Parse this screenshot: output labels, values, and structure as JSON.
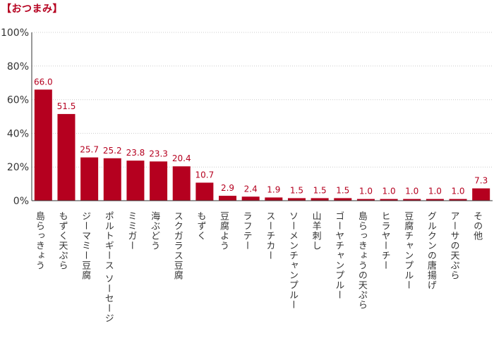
{
  "chart_data": {
    "type": "bar",
    "title": "【おつまみ】",
    "xlabel": "",
    "ylabel": "",
    "ylim": [
      0,
      100
    ],
    "yticks": [
      0,
      20,
      40,
      60,
      80,
      100
    ],
    "ytick_labels": [
      "0%",
      "20%",
      "40%",
      "60%",
      "80%",
      "100%"
    ],
    "grid": true,
    "bar_color": "#b5001f",
    "label_color": "#b5001f",
    "categories": [
      "島らっきょう",
      "もずく天ぷら",
      "ジーマミー豆腐",
      "ポルトギース ソーセージ",
      "ミミガー",
      "海ぶどう",
      "スクガラス豆腐",
      "もずく",
      "豆腐よう",
      "ラフテー",
      "スーチカー",
      "ソーメンチャンプルー",
      "山羊刺し",
      "ゴーヤチャンプルー",
      "島らっきょうの天ぷら",
      "ヒラヤーチー",
      "豆腐チャンプルー",
      "グルクンの唐揚げ",
      "アーサの天ぷら",
      "その他"
    ],
    "values": [
      66.0,
      51.5,
      25.7,
      25.2,
      23.8,
      23.3,
      20.4,
      10.7,
      2.9,
      2.4,
      1.9,
      1.5,
      1.5,
      1.5,
      1.0,
      1.0,
      1.0,
      1.0,
      1.0,
      7.3
    ],
    "value_labels": [
      "66.0",
      "51.5",
      "25.7",
      "25.2",
      "23.8",
      "23.3",
      "20.4",
      "10.7",
      "2.9",
      "2.4",
      "1.9",
      "1.5",
      "1.5",
      "1.5",
      "1.0",
      "1.0",
      "1.0",
      "1.0",
      "1.0",
      "7.3"
    ]
  }
}
